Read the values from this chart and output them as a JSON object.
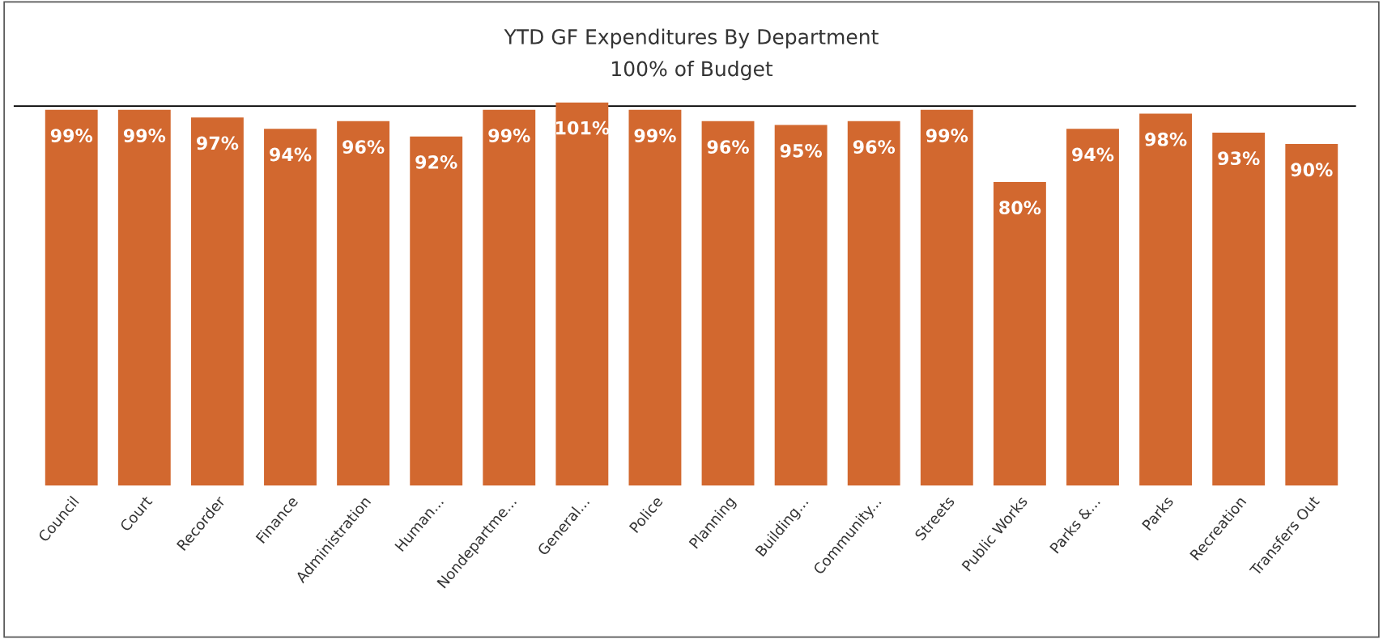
{
  "chart_data": {
    "type": "bar",
    "title": "YTD GF Expenditures By Department",
    "subtitle": "100% of Budget",
    "categories": [
      "Council",
      "Court",
      "Recorder",
      "Finance",
      "Administration",
      "Human...",
      "Nondepartme...",
      "General...",
      "Police",
      "Planning",
      "Building...",
      "Community...",
      "Streets",
      "Public Works",
      "Parks &...",
      "Parks",
      "Recreation",
      "Transfers Out"
    ],
    "values": [
      99,
      99,
      97,
      94,
      96,
      92,
      99,
      101,
      99,
      96,
      95,
      96,
      99,
      80,
      94,
      98,
      93,
      90
    ],
    "value_labels": [
      "99%",
      "99%",
      "97%",
      "94%",
      "96%",
      "92%",
      "99%",
      "101%",
      "99%",
      "96%",
      "95%",
      "96%",
      "99%",
      "80%",
      "94%",
      "98%",
      "93%",
      "90%"
    ],
    "color": "#d2682f",
    "ref_lines": [
      {
        "axis": "y",
        "value": 100,
        "label": null,
        "color": "#000000"
      }
    ],
    "grid": false,
    "legend": false
  }
}
